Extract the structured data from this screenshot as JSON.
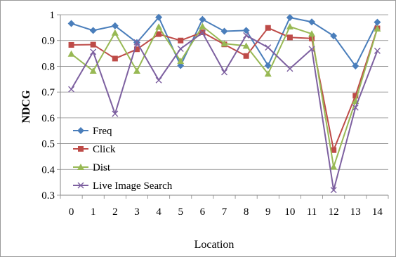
{
  "chart_data": {
    "type": "line",
    "xlabel": "Location",
    "ylabel": "NDCG",
    "x": [
      0,
      1,
      2,
      3,
      4,
      5,
      6,
      7,
      8,
      9,
      10,
      11,
      12,
      13,
      14
    ],
    "ylim": [
      0.3,
      1.0
    ],
    "yticks": [
      "0.3",
      "0.4",
      "0.5",
      "0.6",
      "0.7",
      "0.8",
      "0.9",
      "1"
    ],
    "xticks": [
      "0",
      "1",
      "2",
      "3",
      "4",
      "5",
      "6",
      "7",
      "8",
      "9",
      "10",
      "11",
      "12",
      "13",
      "14"
    ],
    "grid": "horizontal",
    "legend_position": "left",
    "series": [
      {
        "name": "Freq",
        "color": "#4a7ebb",
        "marker": "diamond",
        "values": [
          0.966,
          0.939,
          0.957,
          0.892,
          0.99,
          0.803,
          0.982,
          0.936,
          0.939,
          0.803,
          0.989,
          0.972,
          0.918,
          0.801,
          0.971
        ]
      },
      {
        "name": "Click",
        "color": "#be4b48",
        "marker": "square",
        "values": [
          0.883,
          0.884,
          0.83,
          0.866,
          0.925,
          0.9,
          0.932,
          0.885,
          0.84,
          0.949,
          0.912,
          0.908,
          0.475,
          0.686,
          0.947
        ]
      },
      {
        "name": "Dist",
        "color": "#98b954",
        "marker": "triangle",
        "values": [
          0.848,
          0.782,
          0.93,
          0.782,
          0.953,
          0.82,
          0.955,
          0.888,
          0.879,
          0.771,
          0.954,
          0.926,
          0.41,
          0.665,
          0.946
        ]
      },
      {
        "name": "Live Image Search",
        "color": "#7d60a0",
        "marker": "x",
        "values": [
          0.711,
          0.856,
          0.616,
          0.893,
          0.746,
          0.868,
          0.93,
          0.777,
          0.92,
          0.873,
          0.791,
          0.867,
          0.32,
          0.64,
          0.86
        ]
      }
    ]
  }
}
